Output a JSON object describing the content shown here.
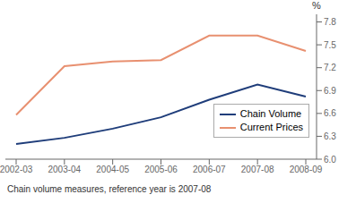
{
  "chart_data": {
    "type": "line",
    "categories": [
      "2002-03",
      "2003-04",
      "2004-05",
      "2005-06",
      "2006-07",
      "2007-08",
      "2008-09"
    ],
    "series": [
      {
        "name": "Chain Volume",
        "color": "#1f3d7a",
        "values": [
          6.2,
          6.28,
          6.4,
          6.55,
          6.78,
          6.98,
          6.82
        ]
      },
      {
        "name": "Current Prices",
        "color": "#e89070",
        "values": [
          6.58,
          7.22,
          7.28,
          7.3,
          7.62,
          7.62,
          7.42
        ]
      }
    ],
    "ylim": [
      6.0,
      7.9
    ],
    "yticks": [
      {
        "value": 6.0,
        "label": "6.0"
      },
      6.3,
      6.6,
      6.9,
      7.2,
      7.5,
      7.8
    ],
    "ylabel": "%",
    "annotations": [
      "Chain volume measures, reference year is 2007-08"
    ],
    "legend": "lower right",
    "grid": false
  }
}
